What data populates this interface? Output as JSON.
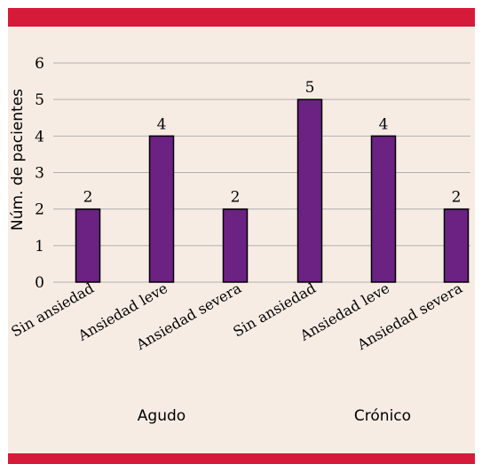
{
  "colors": {
    "band": "#d51a3a",
    "background": "#f7ece4",
    "bar": "#6b2283",
    "grid": "#b0b0b0"
  },
  "chart_data": {
    "type": "bar",
    "title": "",
    "ylabel": "Núm. de pacientes",
    "xlabel": "",
    "ylim": [
      0,
      6
    ],
    "yticks": [
      0,
      1,
      2,
      3,
      4,
      5,
      6
    ],
    "grid": true,
    "groups": [
      "Agudo",
      "Crónico"
    ],
    "categories": [
      "Sin ansiedad",
      "Ansiedad leve",
      "Ansiedad severa",
      "Sin ansiedad",
      "Ansiedad leve",
      "Ansiedad severa"
    ],
    "values": [
      2,
      4,
      2,
      5,
      4,
      2
    ],
    "data_labels": [
      "2",
      "4",
      "2",
      "5",
      "4",
      "2"
    ]
  }
}
